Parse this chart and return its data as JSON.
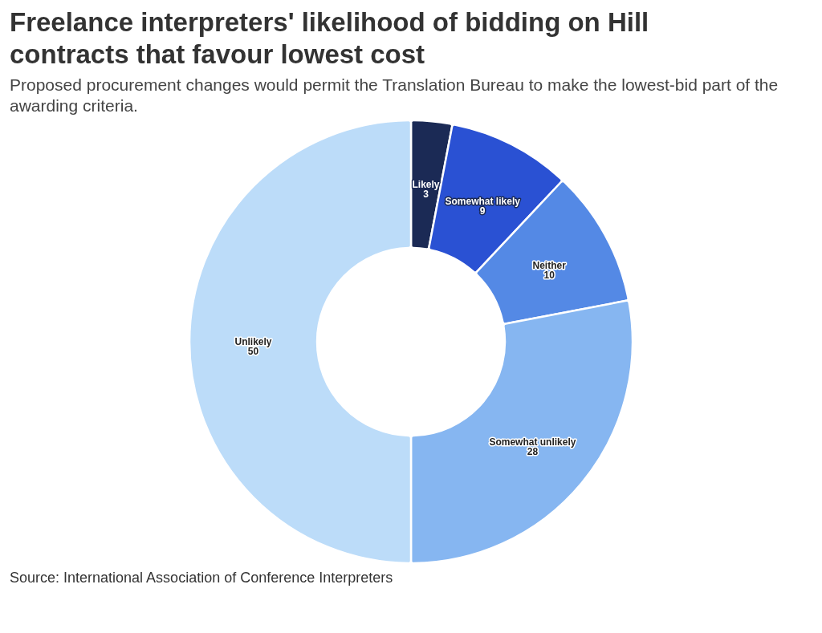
{
  "chart_data": {
    "type": "donut",
    "title": "Freelance interpreters' likelihood of bidding on Hill contracts that favour lowest cost",
    "subtitle": "Proposed procurement changes would permit the Translation Bureau to make the lowest-bid part of the awarding criteria.",
    "categories": [
      "Likely",
      "Somewhat likely",
      "Neither",
      "Somewhat unlikely",
      "Unlikely"
    ],
    "values": [
      3,
      9,
      10,
      28,
      50
    ],
    "colors": [
      "#1b2a55",
      "#2a51d3",
      "#5489e5",
      "#86b6f1",
      "#bcdcf9"
    ],
    "data_labels": true,
    "annotations": [
      "Source: International Association of Conference Interpreters"
    ]
  }
}
